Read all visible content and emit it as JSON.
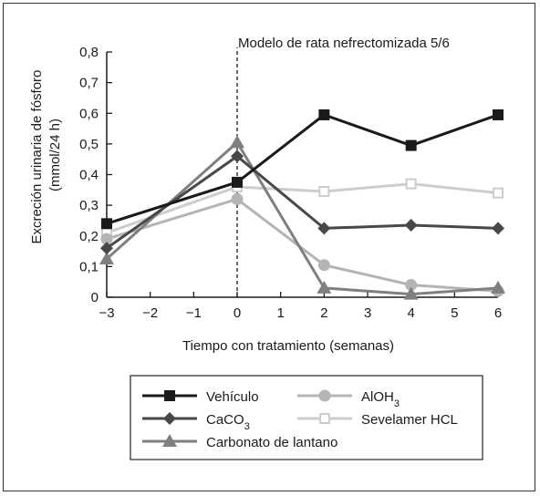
{
  "chart_data": {
    "type": "line",
    "annotation": "Modelo de rata nefrectomizada 5/6",
    "xlabel": "Tiempo con tratamiento (semanas)",
    "ylabel_line1": "Excreción urinaria de fósforo",
    "ylabel_line2": "(mmol/24 h)",
    "xlim": [
      -3,
      6
    ],
    "ylim": [
      0,
      0.8
    ],
    "x_ticks": [
      -3,
      -2,
      -1,
      0,
      1,
      2,
      3,
      4,
      5,
      6
    ],
    "x_tick_labels": [
      "−3",
      "−2",
      "−1",
      "0",
      "1",
      "2",
      "3",
      "4",
      "5",
      "6"
    ],
    "y_ticks": [
      0,
      0.1,
      0.2,
      0.3,
      0.4,
      0.5,
      0.6,
      0.7,
      0.8
    ],
    "y_tick_labels": [
      "0",
      "0,1",
      "0,2",
      "0,3",
      "0,4",
      "0,5",
      "0,6",
      "0,7",
      "0,8"
    ],
    "vertical_reference_x": 0,
    "grid": false,
    "legend_position": "bottom",
    "series": [
      {
        "name": "Vehículo",
        "marker": "square",
        "color": "#1a1a1a",
        "x": [
          -3,
          0,
          2,
          4,
          6
        ],
        "values": [
          0.24,
          0.375,
          0.595,
          0.495,
          0.595
        ]
      },
      {
        "name": "CaCO",
        "name_sub": "3",
        "marker": "diamond",
        "color": "#484848",
        "x": [
          -3,
          0,
          2,
          4,
          6
        ],
        "values": [
          0.16,
          0.46,
          0.225,
          0.235,
          0.225
        ]
      },
      {
        "name": "Carbonato de lantano",
        "marker": "triangle",
        "color": "#7f7f7f",
        "x": [
          -3,
          0,
          2,
          4,
          6
        ],
        "values": [
          0.125,
          0.505,
          0.03,
          0.01,
          0.03
        ]
      },
      {
        "name": "AlOH",
        "name_sub": "3",
        "marker": "circle",
        "color": "#b4b4b4",
        "x": [
          -3,
          0,
          2,
          4,
          6
        ],
        "values": [
          0.19,
          0.32,
          0.105,
          0.04,
          0.02
        ]
      },
      {
        "name": "Sevelamer HCL",
        "marker": "square-open",
        "color": "#cdcdcd",
        "x": [
          -3,
          0,
          2,
          4,
          6
        ],
        "values": [
          0.21,
          0.36,
          0.345,
          0.37,
          0.34
        ]
      }
    ]
  }
}
